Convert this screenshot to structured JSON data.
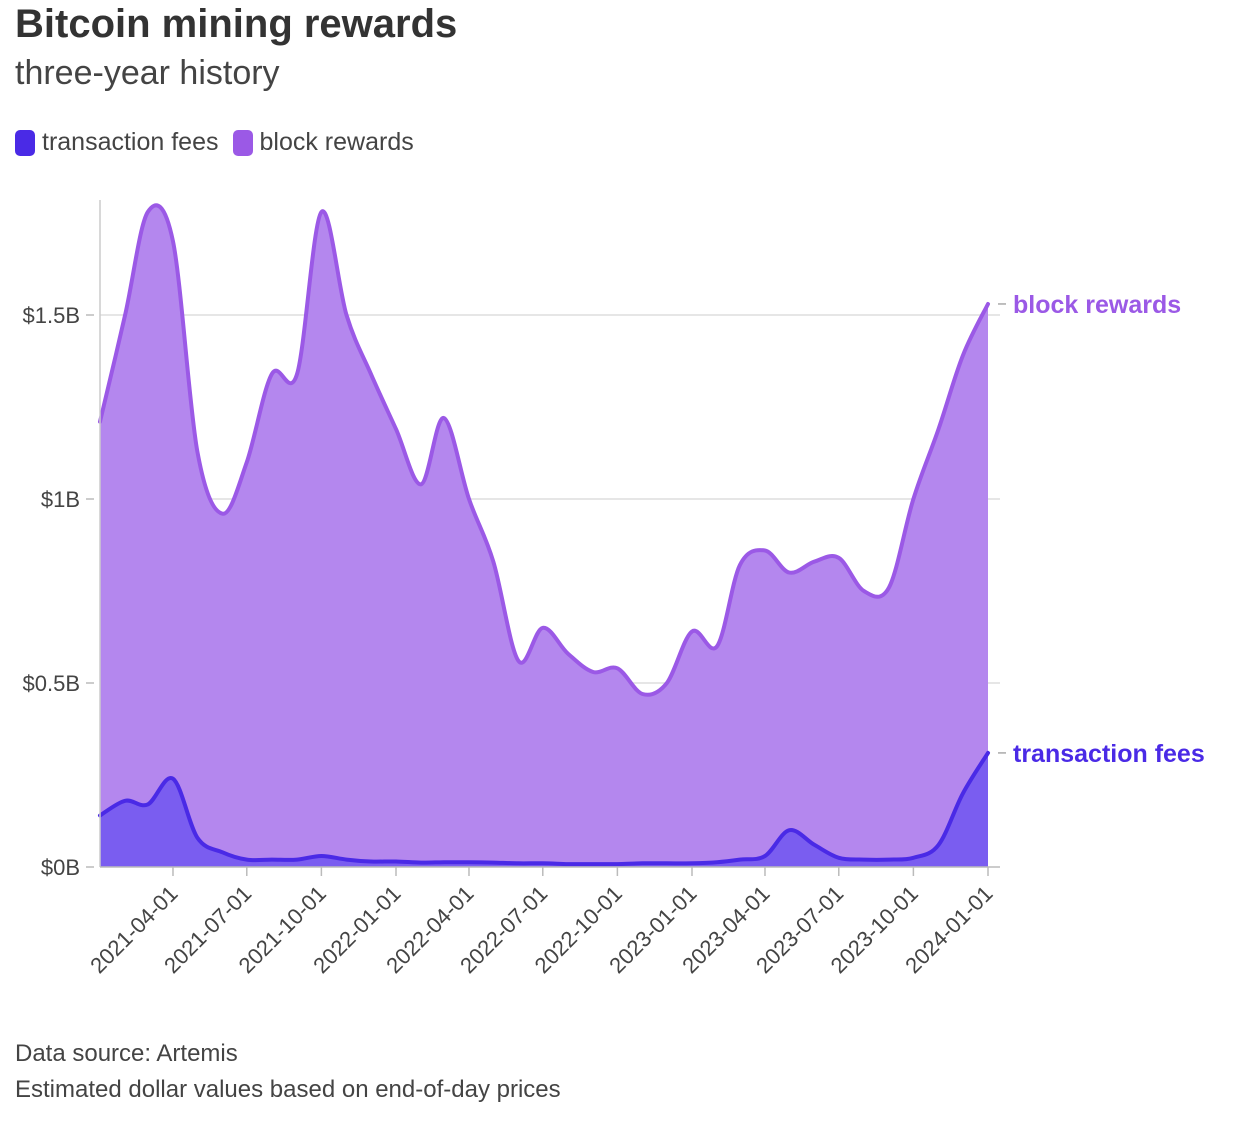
{
  "title": "Bitcoin mining rewards",
  "subtitle": "three-year history",
  "legend": [
    {
      "label": "transaction fees",
      "color": "#4a2ae6"
    },
    {
      "label": "block rewards",
      "color": "#9b59e6"
    }
  ],
  "footer": {
    "source": "Data source: Artemis",
    "note": "Estimated dollar values based on end-of-day prices"
  },
  "chart_data": {
    "type": "area",
    "stacked": true,
    "title": "Bitcoin mining rewards",
    "subtitle": "three-year history",
    "xlabel": "",
    "ylabel": "",
    "x_ticks": [
      "2021-04-01",
      "2021-07-01",
      "2021-10-01",
      "2022-01-01",
      "2022-04-01",
      "2022-07-01",
      "2022-10-01",
      "2023-01-01",
      "2023-04-01",
      "2023-07-01",
      "2023-10-01",
      "2024-01-01"
    ],
    "y_ticks": [
      {
        "value": 0,
        "label": "$0B"
      },
      {
        "value": 0.5,
        "label": "$0.5B"
      },
      {
        "value": 1,
        "label": "$1B"
      },
      {
        "value": 1.5,
        "label": "$1.5B"
      }
    ],
    "xlim": [
      "2021-01-01",
      "2024-01-01"
    ],
    "ylim": [
      0,
      1.8
    ],
    "grid": true,
    "legend_position": "top-left",
    "series": [
      {
        "name": "transaction fees",
        "color": "#4a2ae6",
        "values": [
          {
            "x": "2021-01-01",
            "y": 0.14
          },
          {
            "x": "2021-02-01",
            "y": 0.18
          },
          {
            "x": "2021-03-01",
            "y": 0.17
          },
          {
            "x": "2021-04-01",
            "y": 0.24
          },
          {
            "x": "2021-05-01",
            "y": 0.08
          },
          {
            "x": "2021-06-01",
            "y": 0.04
          },
          {
            "x": "2021-07-01",
            "y": 0.02
          },
          {
            "x": "2021-08-01",
            "y": 0.02
          },
          {
            "x": "2021-09-01",
            "y": 0.02
          },
          {
            "x": "2021-10-01",
            "y": 0.03
          },
          {
            "x": "2021-11-01",
            "y": 0.02
          },
          {
            "x": "2021-12-01",
            "y": 0.015
          },
          {
            "x": "2022-01-01",
            "y": 0.015
          },
          {
            "x": "2022-02-01",
            "y": 0.012
          },
          {
            "x": "2022-03-01",
            "y": 0.013
          },
          {
            "x": "2022-04-01",
            "y": 0.013
          },
          {
            "x": "2022-05-01",
            "y": 0.012
          },
          {
            "x": "2022-06-01",
            "y": 0.01
          },
          {
            "x": "2022-07-01",
            "y": 0.01
          },
          {
            "x": "2022-08-01",
            "y": 0.008
          },
          {
            "x": "2022-09-01",
            "y": 0.008
          },
          {
            "x": "2022-10-01",
            "y": 0.008
          },
          {
            "x": "2022-11-01",
            "y": 0.01
          },
          {
            "x": "2022-12-01",
            "y": 0.01
          },
          {
            "x": "2023-01-01",
            "y": 0.01
          },
          {
            "x": "2023-02-01",
            "y": 0.013
          },
          {
            "x": "2023-03-01",
            "y": 0.02
          },
          {
            "x": "2023-04-01",
            "y": 0.03
          },
          {
            "x": "2023-05-01",
            "y": 0.1
          },
          {
            "x": "2023-06-01",
            "y": 0.06
          },
          {
            "x": "2023-07-01",
            "y": 0.025
          },
          {
            "x": "2023-08-01",
            "y": 0.02
          },
          {
            "x": "2023-09-01",
            "y": 0.02
          },
          {
            "x": "2023-10-01",
            "y": 0.025
          },
          {
            "x": "2023-11-01",
            "y": 0.06
          },
          {
            "x": "2023-12-01",
            "y": 0.2
          },
          {
            "x": "2024-01-01",
            "y": 0.31
          }
        ]
      },
      {
        "name": "block rewards",
        "color": "#9b59e6",
        "values": [
          {
            "x": "2021-01-01",
            "y": 1.21
          },
          {
            "x": "2021-02-01",
            "y": 1.5
          },
          {
            "x": "2021-03-01",
            "y": 1.78
          },
          {
            "x": "2021-04-01",
            "y": 1.7
          },
          {
            "x": "2021-05-01",
            "y": 1.13
          },
          {
            "x": "2021-06-01",
            "y": 0.96
          },
          {
            "x": "2021-07-01",
            "y": 1.1
          },
          {
            "x": "2021-08-01",
            "y": 1.34
          },
          {
            "x": "2021-09-01",
            "y": 1.34
          },
          {
            "x": "2021-10-01",
            "y": 1.78
          },
          {
            "x": "2021-11-01",
            "y": 1.5
          },
          {
            "x": "2021-12-01",
            "y": 1.34
          },
          {
            "x": "2022-01-01",
            "y": 1.19
          },
          {
            "x": "2022-02-01",
            "y": 1.04
          },
          {
            "x": "2022-03-01",
            "y": 1.22
          },
          {
            "x": "2022-04-01",
            "y": 1.0
          },
          {
            "x": "2022-05-01",
            "y": 0.83
          },
          {
            "x": "2022-06-01",
            "y": 0.56
          },
          {
            "x": "2022-07-01",
            "y": 0.65
          },
          {
            "x": "2022-08-01",
            "y": 0.58
          },
          {
            "x": "2022-09-01",
            "y": 0.53
          },
          {
            "x": "2022-10-01",
            "y": 0.54
          },
          {
            "x": "2022-11-01",
            "y": 0.47
          },
          {
            "x": "2022-12-01",
            "y": 0.5
          },
          {
            "x": "2023-01-01",
            "y": 0.64
          },
          {
            "x": "2023-02-01",
            "y": 0.6
          },
          {
            "x": "2023-03-01",
            "y": 0.82
          },
          {
            "x": "2023-04-01",
            "y": 0.86
          },
          {
            "x": "2023-05-01",
            "y": 0.8
          },
          {
            "x": "2023-06-01",
            "y": 0.83
          },
          {
            "x": "2023-07-01",
            "y": 0.84
          },
          {
            "x": "2023-08-01",
            "y": 0.75
          },
          {
            "x": "2023-09-01",
            "y": 0.76
          },
          {
            "x": "2023-10-01",
            "y": 1.0
          },
          {
            "x": "2023-11-01",
            "y": 1.19
          },
          {
            "x": "2023-12-01",
            "y": 1.39
          },
          {
            "x": "2024-01-01",
            "y": 1.53
          }
        ]
      }
    ]
  }
}
